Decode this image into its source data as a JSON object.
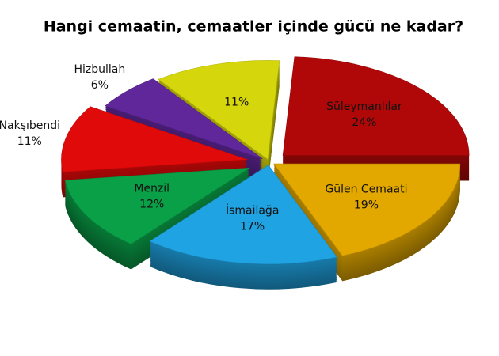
{
  "chart_data": {
    "type": "pie3d",
    "title": "Hangi cemaatin, cemaatler içinde gücü ne kadar?",
    "categories": [
      null,
      "Süleymanlılar",
      "Gülen Cemaati",
      "İsmailağa",
      "Menzil",
      "Nakşıbendi",
      "Hizbullah"
    ],
    "values": [
      11,
      24,
      19,
      17,
      12,
      11,
      6
    ],
    "value_labels": [
      "11%",
      "24%",
      "19%",
      "17%",
      "12%",
      "11%",
      "6%"
    ],
    "colors": [
      "#d6d60c",
      "#b00808",
      "#e2a800",
      "#1fa3e2",
      "#0aa048",
      "#e00a0a",
      "#60279a"
    ]
  }
}
